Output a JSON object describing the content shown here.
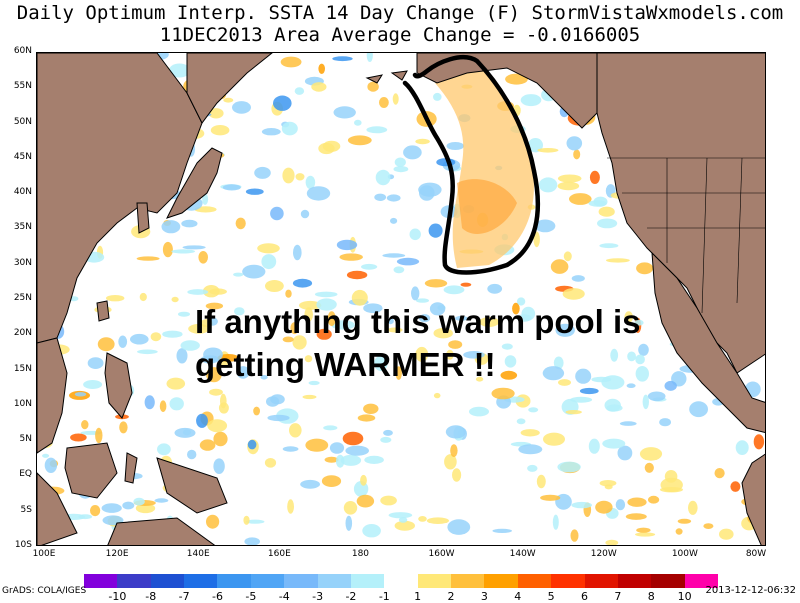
{
  "title_line_1": "Daily Optimum Interp. SSTA 14 Day Change (F) StormVistaWxmodels.com",
  "title_line_2": "11DEC2013 Area Average Change = -0.0166005",
  "annotation": {
    "line_1": "If anything this warm pool is",
    "line_2": "getting  WARMER !!"
  },
  "map": {
    "lat_labels": [
      "60N",
      "55N",
      "50N",
      "45N",
      "40N",
      "35N",
      "30N",
      "25N",
      "20N",
      "15N",
      "10N",
      "5N",
      "EQ",
      "5S",
      "10S"
    ],
    "lon_labels": [
      "100E",
      "120E",
      "140E",
      "160E",
      "180",
      "160W",
      "140W",
      "120W",
      "100W",
      "80W"
    ],
    "land_color": "#a57f6e",
    "ocean_color": "#ffffff",
    "highlighted_region": "warm pool outlined by hand-drawn black contour (Northeast Pacific)"
  },
  "colorbar": {
    "labels": [
      "-10",
      "-8",
      "-7",
      "-6",
      "-5",
      "-4",
      "-3",
      "-2",
      "-1",
      "1",
      "2",
      "3",
      "4",
      "5",
      "6",
      "7",
      "8",
      "10"
    ],
    "colors": [
      "#8200dc",
      "#3c3cc8",
      "#1e50d2",
      "#1e6ee6",
      "#3c96f0",
      "#50a5f5",
      "#78b9fa",
      "#96d2fa",
      "#b4f0fa",
      "#ffffff",
      "#ffe878",
      "#ffc03c",
      "#ffa000",
      "#ff6000",
      "#ff3200",
      "#e11400",
      "#c00000",
      "#a50000",
      "#ff00aa"
    ]
  },
  "footer": {
    "source": "GrADS: COLA/IGES",
    "timestamp": "2013-12-12-06:32"
  }
}
